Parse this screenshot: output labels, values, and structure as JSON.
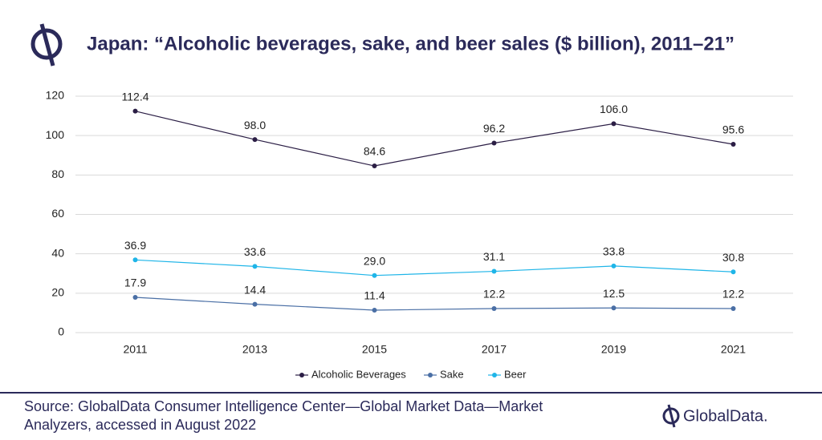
{
  "chart_data": {
    "type": "line",
    "title": "Japan: “Alcoholic beverages, sake, and beer sales ($ billion), 2011–21”",
    "categories": [
      "2011",
      "2013",
      "2015",
      "2017",
      "2019",
      "2021"
    ],
    "series": [
      {
        "name": "Alcoholic Beverages",
        "color": "#2b1e45",
        "values": [
          112.4,
          98,
          84.6,
          96.2,
          106,
          95.6
        ],
        "value_labels": [
          "112.4",
          "98.0",
          "84.6",
          "96.2",
          "106.0",
          "95.6"
        ]
      },
      {
        "name": "Sake",
        "color": "#4a6fa5",
        "values": [
          17.9,
          14.4,
          11.4,
          12.2,
          12.5,
          12.2
        ]
      },
      {
        "name": "Beer",
        "color": "#1fb5e8",
        "values": [
          36.9,
          33.6,
          29,
          31.1,
          33.8,
          30.8
        ],
        "value_labels": [
          "36.9",
          "33.6",
          "29.0",
          "31.1",
          "33.8",
          "30.8"
        ]
      }
    ],
    "ylim": [
      0,
      120
    ],
    "yticks": [
      0,
      20,
      40,
      60,
      80,
      100,
      120
    ],
    "grid": true,
    "legend": "bottom"
  },
  "source": [
    "Source: GlobalData Consumer Intelligence Center—Global Market Data—Market",
    "Analyzers, accessed in August 2022"
  ],
  "logo": "GlobalData."
}
